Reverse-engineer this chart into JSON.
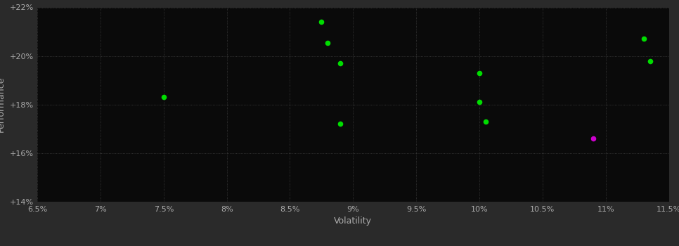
{
  "background_color": "#2a2a2a",
  "plot_bg_color": "#0a0a0a",
  "grid_color": "#404040",
  "xlabel": "Volatility",
  "ylabel": "Performance",
  "xlim": [
    0.065,
    0.115
  ],
  "ylim": [
    0.14,
    0.22
  ],
  "xticks": [
    0.065,
    0.07,
    0.075,
    0.08,
    0.085,
    0.09,
    0.095,
    0.1,
    0.105,
    0.11,
    0.115
  ],
  "yticks": [
    0.14,
    0.16,
    0.18,
    0.2,
    0.22
  ],
  "green_points": [
    [
      0.0875,
      0.214
    ],
    [
      0.088,
      0.2055
    ],
    [
      0.089,
      0.197
    ],
    [
      0.089,
      0.172
    ],
    [
      0.075,
      0.183
    ],
    [
      0.1,
      0.193
    ],
    [
      0.1,
      0.181
    ],
    [
      0.1005,
      0.173
    ],
    [
      0.113,
      0.207
    ],
    [
      0.1135,
      0.198
    ]
  ],
  "magenta_points": [
    [
      0.109,
      0.166
    ]
  ],
  "green_color": "#00dd00",
  "magenta_color": "#cc00cc",
  "tick_color": "#aaaaaa",
  "label_color": "#aaaaaa",
  "grid_linestyle": ":",
  "grid_linewidth": 0.6,
  "marker_size": 30
}
